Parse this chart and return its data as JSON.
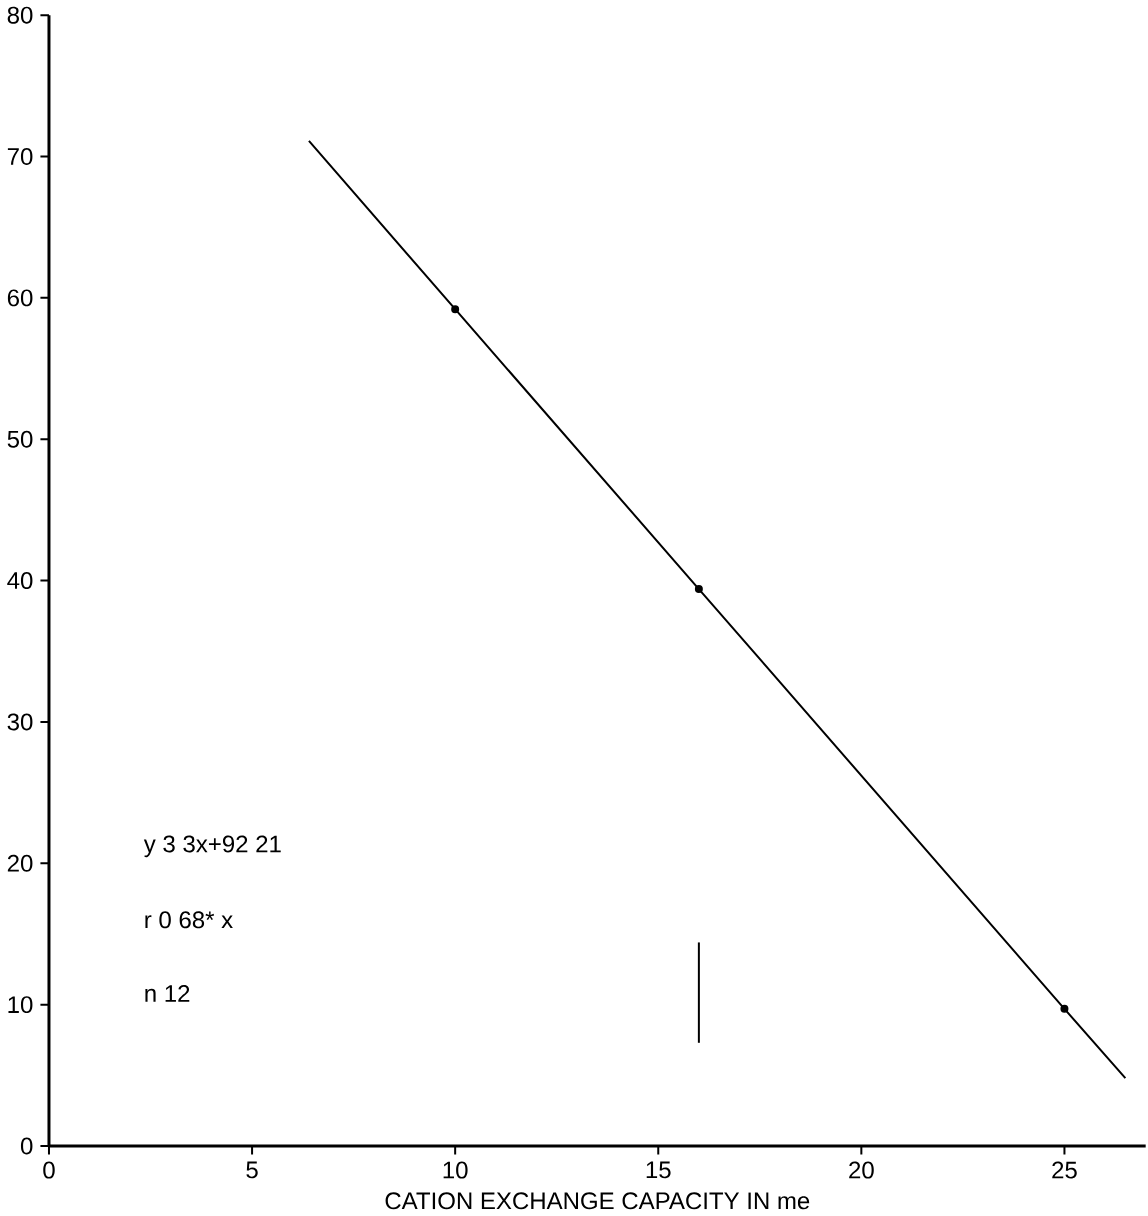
{
  "chart_data": {
    "type": "line",
    "xlabel": "CATION EXCHANGE CAPACITY IN me",
    "x": [
      6.4,
      10,
      16,
      25,
      26.5
    ],
    "series": [
      {
        "type": "line",
        "color": "#000000",
        "marker": "none",
        "values": [
          71.1,
          59.2,
          39.4,
          9.7,
          4.8
        ]
      },
      {
        "type": "scatter",
        "color": "#000000",
        "marker": "circle",
        "x": [
          10,
          16,
          25
        ],
        "values": [
          59.2,
          39.4,
          9.7
        ]
      },
      {
        "type": "line",
        "color": "#000000",
        "marker": "none",
        "x": [
          16,
          16
        ],
        "values": [
          7.3,
          14.4
        ]
      }
    ],
    "xlim": [
      0,
      27
    ],
    "ylim": [
      0,
      80
    ],
    "xticks": [
      0,
      5,
      10,
      15,
      20,
      25
    ],
    "yticks": [
      0,
      10,
      20,
      30,
      40,
      50,
      60,
      70,
      80
    ],
    "grid": false,
    "annotations": [
      "y   3 3x+92 21",
      "r   0 68* x",
      "n   12"
    ]
  }
}
